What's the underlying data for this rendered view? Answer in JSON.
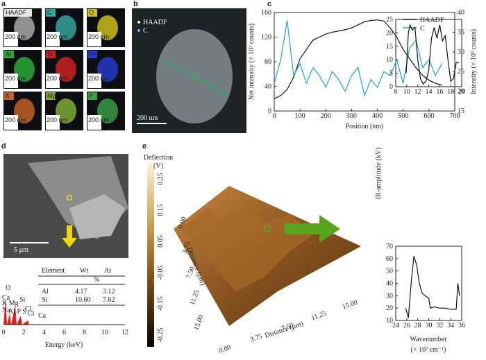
{
  "figure": {
    "panel_labels": [
      "a",
      "b",
      "c",
      "d",
      "e"
    ],
    "a": {
      "maps": [
        "HAADF",
        "C",
        "O",
        "Al",
        "Si",
        "Fe",
        "K",
        "Mg",
        "P"
      ],
      "scale": "200 nm"
    },
    "b": {
      "legend": [
        "HAADF",
        "C"
      ],
      "scale": "200 nm"
    },
    "d": {
      "scale": "5 µm",
      "peaks": [
        "O",
        "Ca",
        "K Mg",
        "Si",
        "Cl",
        "Na",
        "Al P S",
        "Cl",
        "Ca"
      ],
      "table": {
        "header": [
          "Element",
          "Wt",
          "At"
        ],
        "unit": "%",
        "rows": [
          [
            "Al",
            "4.17",
            "3.12"
          ],
          [
            "Si",
            "10.60",
            "7.62"
          ]
        ]
      },
      "energy_ticks": [
        "0",
        "2",
        "4",
        "6",
        "8",
        "10",
        "12"
      ],
      "energy_label": "Energy (keV)"
    },
    "e": {
      "colorbar_title": "Deflection",
      "colorbar_unit": "(V)",
      "colorbar_ticks": [
        "0.25",
        "0.15",
        "0.05",
        "-0.05",
        "-0.15",
        "-0.25"
      ],
      "distance_ticks": [
        "0.00",
        "3.75",
        "7.50",
        "11.25",
        "15.00"
      ],
      "distance_label": "Distance (µm)",
      "ir_ylabel": "IR-amplitude (kV)",
      "ir_xlabel": "Wavenumber",
      "ir_xunit": "(× 10² cm⁻¹)"
    }
  },
  "chart_data": [
    {
      "type": "line",
      "xlabel": "Position (nm)",
      "ylabel": "Net intensity (× 10³ counts)",
      "y2label": "Intensity (× 10³ counts)",
      "xlim": [
        0,
        700
      ],
      "xticks": [
        0,
        100,
        200,
        300,
        400,
        500,
        600,
        700
      ],
      "ylim": [
        0,
        160
      ],
      "yticks": [
        0,
        40,
        80,
        120,
        160
      ],
      "y2lim": [
        15,
        40
      ],
      "y2ticks": [
        15,
        20,
        25,
        30,
        35,
        40
      ],
      "legend": "upper right",
      "x": [
        0,
        25,
        50,
        75,
        100,
        125,
        150,
        175,
        200,
        225,
        250,
        275,
        300,
        325,
        350,
        375,
        400,
        425,
        450,
        475,
        500,
        525,
        550,
        575,
        600,
        625,
        650
      ],
      "series": [
        {
          "name": "HAADF",
          "color": "#111111",
          "values": [
            20,
            25,
            35,
            55,
            85,
            100,
            115,
            120,
            125,
            128,
            130,
            132,
            135,
            140,
            145,
            147,
            148,
            146,
            135,
            120,
            100,
            85,
            70,
            58,
            50,
            45,
            42
          ]
        },
        {
          "name": "C",
          "color": "#1fa2c4",
          "axis": "y2",
          "values": [
            22,
            28,
            38,
            24,
            27,
            22,
            26,
            24,
            21,
            25,
            23,
            20,
            24,
            26,
            19,
            23,
            21,
            25,
            24,
            28,
            22,
            31,
            33,
            26,
            28,
            24,
            27
          ]
        }
      ]
    },
    {
      "type": "line",
      "xlim": [
        8,
        20
      ],
      "xticks": [
        8,
        10,
        12,
        14,
        16,
        18,
        20
      ],
      "ylim": [
        0,
        25
      ],
      "yticks": [
        0,
        5,
        10,
        15,
        20,
        25
      ],
      "color": "#111111",
      "x": [
        9.9,
        10.3,
        10.6,
        11,
        11.5,
        12,
        12.5,
        13,
        13.5,
        14,
        14.5,
        15,
        15.5,
        16,
        16.5,
        17,
        17.5,
        18,
        18.5,
        19,
        19.5
      ],
      "values": [
        5,
        20,
        23,
        21,
        22,
        10,
        3,
        1,
        2,
        6,
        18,
        22,
        18,
        23,
        17,
        19,
        10,
        2,
        3,
        9,
        9
      ]
    },
    {
      "type": "line",
      "xlim": [
        24,
        36
      ],
      "xticks": [
        24,
        26,
        28,
        30,
        32,
        34,
        36
      ],
      "ylim": [
        10,
        70
      ],
      "yticks": [
        10,
        20,
        30,
        40,
        50,
        60,
        70
      ],
      "color": "#111111",
      "x": [
        25.8,
        26.3,
        26.8,
        27.3,
        27.8,
        28.3,
        28.8,
        29.3,
        30,
        30.3,
        31,
        32,
        33,
        34,
        35,
        35.3,
        35.6
      ],
      "values": [
        20,
        12,
        40,
        62,
        55,
        40,
        32,
        30,
        28,
        20,
        21,
        20,
        20,
        19,
        19,
        40,
        30
      ]
    }
  ]
}
